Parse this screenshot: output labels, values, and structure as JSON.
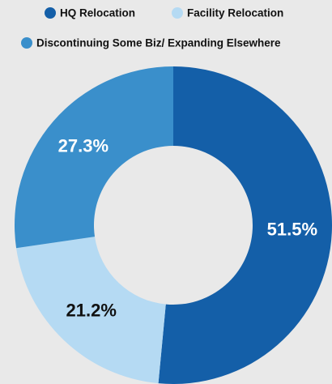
{
  "chart_data": {
    "type": "donut",
    "categories": [
      "HQ Relocation",
      "Facility Relocation",
      "Discontinuing Some Biz/ Expanding Elsewhere"
    ],
    "values": [
      51.5,
      21.2,
      27.3
    ],
    "value_labels": [
      "51.5%",
      "21.2%",
      "27.3%"
    ],
    "colors": [
      "#145fa8",
      "#b5daf3",
      "#3a8fcb"
    ]
  }
}
